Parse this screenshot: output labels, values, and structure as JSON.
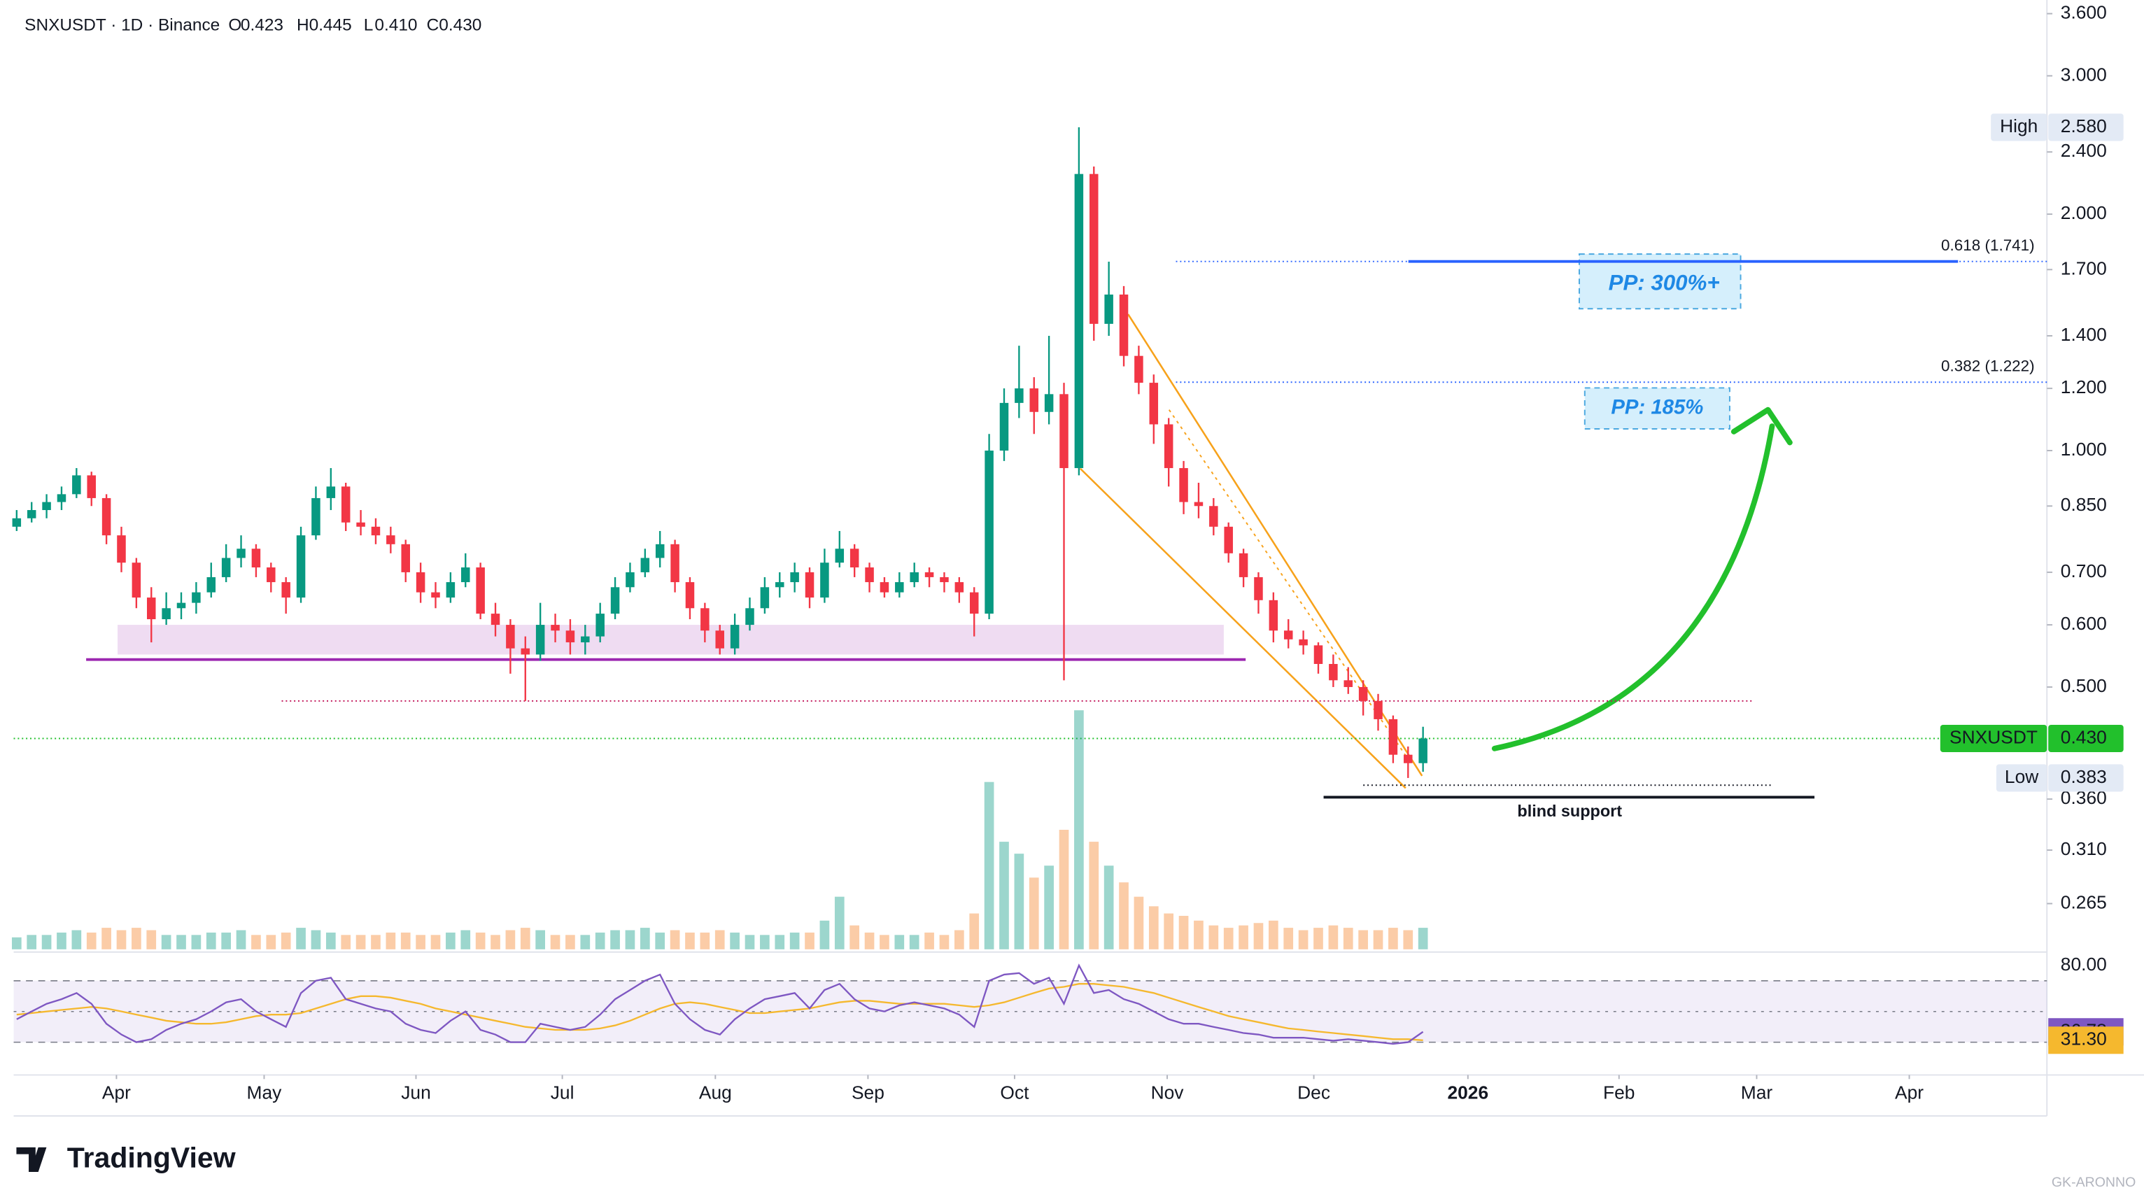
{
  "chart_data": {
    "type": "candlestick",
    "header": {
      "title": "SNXUSDT · 1D · Binance",
      "ohlc_names": [
        "O",
        "H",
        "L",
        "C"
      ],
      "values": [
        0.423,
        0.445,
        0.41,
        0.43
      ],
      "value_labels": [
        "0.423",
        "0.445",
        "0.410",
        "0.430"
      ]
    },
    "ohlc": [
      [
        0.8,
        0.84,
        0.79,
        0.82
      ],
      [
        0.82,
        0.86,
        0.81,
        0.84
      ],
      [
        0.84,
        0.88,
        0.82,
        0.86
      ],
      [
        0.86,
        0.9,
        0.84,
        0.88
      ],
      [
        0.88,
        0.95,
        0.87,
        0.93
      ],
      [
        0.93,
        0.94,
        0.85,
        0.87
      ],
      [
        0.87,
        0.88,
        0.76,
        0.78
      ],
      [
        0.78,
        0.8,
        0.7,
        0.72
      ],
      [
        0.72,
        0.73,
        0.63,
        0.65
      ],
      [
        0.65,
        0.67,
        0.57,
        0.61
      ],
      [
        0.61,
        0.66,
        0.6,
        0.63
      ],
      [
        0.63,
        0.66,
        0.61,
        0.64
      ],
      [
        0.64,
        0.68,
        0.62,
        0.66
      ],
      [
        0.66,
        0.72,
        0.65,
        0.69
      ],
      [
        0.69,
        0.76,
        0.68,
        0.73
      ],
      [
        0.73,
        0.78,
        0.71,
        0.75
      ],
      [
        0.75,
        0.76,
        0.69,
        0.71
      ],
      [
        0.71,
        0.72,
        0.66,
        0.68
      ],
      [
        0.68,
        0.69,
        0.62,
        0.65
      ],
      [
        0.65,
        0.8,
        0.64,
        0.78
      ],
      [
        0.78,
        0.9,
        0.77,
        0.87
      ],
      [
        0.87,
        0.95,
        0.84,
        0.9
      ],
      [
        0.9,
        0.91,
        0.79,
        0.81
      ],
      [
        0.81,
        0.84,
        0.78,
        0.8
      ],
      [
        0.8,
        0.82,
        0.76,
        0.78
      ],
      [
        0.78,
        0.8,
        0.74,
        0.76
      ],
      [
        0.76,
        0.77,
        0.68,
        0.7
      ],
      [
        0.7,
        0.72,
        0.64,
        0.66
      ],
      [
        0.66,
        0.68,
        0.63,
        0.65
      ],
      [
        0.65,
        0.7,
        0.64,
        0.68
      ],
      [
        0.68,
        0.74,
        0.67,
        0.71
      ],
      [
        0.71,
        0.72,
        0.61,
        0.62
      ],
      [
        0.62,
        0.64,
        0.58,
        0.6
      ],
      [
        0.6,
        0.61,
        0.52,
        0.56
      ],
      [
        0.56,
        0.58,
        0.48,
        0.55
      ],
      [
        0.55,
        0.64,
        0.54,
        0.6
      ],
      [
        0.6,
        0.62,
        0.57,
        0.59
      ],
      [
        0.59,
        0.61,
        0.55,
        0.57
      ],
      [
        0.57,
        0.6,
        0.55,
        0.58
      ],
      [
        0.58,
        0.64,
        0.57,
        0.62
      ],
      [
        0.62,
        0.69,
        0.61,
        0.67
      ],
      [
        0.67,
        0.72,
        0.66,
        0.7
      ],
      [
        0.7,
        0.75,
        0.69,
        0.73
      ],
      [
        0.73,
        0.79,
        0.71,
        0.76
      ],
      [
        0.76,
        0.77,
        0.66,
        0.68
      ],
      [
        0.68,
        0.69,
        0.61,
        0.63
      ],
      [
        0.63,
        0.64,
        0.57,
        0.59
      ],
      [
        0.59,
        0.6,
        0.55,
        0.56
      ],
      [
        0.56,
        0.62,
        0.55,
        0.6
      ],
      [
        0.6,
        0.65,
        0.59,
        0.63
      ],
      [
        0.63,
        0.69,
        0.62,
        0.67
      ],
      [
        0.67,
        0.7,
        0.65,
        0.68
      ],
      [
        0.68,
        0.72,
        0.66,
        0.7
      ],
      [
        0.7,
        0.71,
        0.63,
        0.65
      ],
      [
        0.65,
        0.75,
        0.64,
        0.72
      ],
      [
        0.72,
        0.79,
        0.71,
        0.75
      ],
      [
        0.75,
        0.76,
        0.69,
        0.71
      ],
      [
        0.71,
        0.72,
        0.66,
        0.68
      ],
      [
        0.68,
        0.69,
        0.65,
        0.66
      ],
      [
        0.66,
        0.7,
        0.65,
        0.68
      ],
      [
        0.68,
        0.72,
        0.67,
        0.7
      ],
      [
        0.7,
        0.71,
        0.67,
        0.69
      ],
      [
        0.69,
        0.7,
        0.66,
        0.68
      ],
      [
        0.68,
        0.69,
        0.64,
        0.66
      ],
      [
        0.66,
        0.67,
        0.58,
        0.62
      ],
      [
        0.62,
        1.05,
        0.61,
        1.0
      ],
      [
        1.0,
        1.2,
        0.97,
        1.15
      ],
      [
        1.15,
        1.36,
        1.1,
        1.2
      ],
      [
        1.2,
        1.24,
        1.05,
        1.12
      ],
      [
        1.12,
        1.4,
        1.08,
        1.18
      ],
      [
        1.18,
        1.22,
        0.51,
        0.95
      ],
      [
        0.95,
        2.58,
        0.93,
        2.25
      ],
      [
        2.25,
        2.3,
        1.38,
        1.45
      ],
      [
        1.45,
        1.74,
        1.4,
        1.58
      ],
      [
        1.58,
        1.62,
        1.28,
        1.32
      ],
      [
        1.32,
        1.36,
        1.18,
        1.22
      ],
      [
        1.22,
        1.25,
        1.02,
        1.08
      ],
      [
        1.08,
        1.1,
        0.9,
        0.95
      ],
      [
        0.95,
        0.97,
        0.83,
        0.86
      ],
      [
        0.86,
        0.91,
        0.82,
        0.85
      ],
      [
        0.85,
        0.87,
        0.78,
        0.8
      ],
      [
        0.8,
        0.81,
        0.72,
        0.74
      ],
      [
        0.74,
        0.75,
        0.67,
        0.69
      ],
      [
        0.69,
        0.7,
        0.62,
        0.645
      ],
      [
        0.645,
        0.66,
        0.57,
        0.59
      ],
      [
        0.59,
        0.61,
        0.56,
        0.575
      ],
      [
        0.575,
        0.59,
        0.55,
        0.565
      ],
      [
        0.565,
        0.57,
        0.52,
        0.535
      ],
      [
        0.535,
        0.55,
        0.5,
        0.51
      ],
      [
        0.51,
        0.53,
        0.49,
        0.5
      ],
      [
        0.5,
        0.51,
        0.46,
        0.48
      ],
      [
        0.48,
        0.49,
        0.44,
        0.455
      ],
      [
        0.455,
        0.46,
        0.4,
        0.41
      ],
      [
        0.41,
        0.42,
        0.383,
        0.4
      ],
      [
        0.4,
        0.445,
        0.39,
        0.43
      ]
    ],
    "volume": [
      5,
      6,
      6,
      7,
      8,
      7,
      9,
      8,
      9,
      8,
      6,
      6,
      6,
      7,
      7,
      8,
      6,
      6,
      7,
      9,
      8,
      7,
      6,
      6,
      6,
      7,
      7,
      6,
      6,
      7,
      8,
      7,
      6,
      8,
      9,
      8,
      6,
      6,
      6,
      7,
      8,
      8,
      9,
      7,
      8,
      7,
      7,
      8,
      7,
      6,
      6,
      6,
      7,
      7,
      12,
      22,
      10,
      7,
      6,
      6,
      6,
      7,
      6,
      8,
      15,
      70,
      45,
      40,
      30,
      35,
      50,
      100,
      45,
      35,
      28,
      22,
      18,
      15,
      14,
      12,
      10,
      9,
      10,
      11,
      12,
      9,
      8,
      9,
      10,
      9,
      8,
      8,
      9,
      8,
      9
    ],
    "vlim": [
      0,
      100
    ],
    "up_color": "#089981",
    "down_color": "#f23645",
    "xlim": [
      -0.2,
      135.7
    ],
    "xticks": [
      {
        "value": 6.67,
        "label": "Apr"
      },
      {
        "value": 16.54,
        "label": "May"
      },
      {
        "value": 26.69,
        "label": "Jun"
      },
      {
        "value": 36.47,
        "label": "Jul"
      },
      {
        "value": 46.7,
        "label": "Aug"
      },
      {
        "value": 56.9,
        "label": "Sep"
      },
      {
        "value": 66.7,
        "label": "Oct"
      },
      {
        "value": 76.9,
        "label": "Nov"
      },
      {
        "value": 86.7,
        "label": "Dec"
      },
      {
        "value": 97.0,
        "label": "2026"
      },
      {
        "value": 107.1,
        "label": "Feb"
      },
      {
        "value": 116.3,
        "label": "Mar"
      },
      {
        "value": 126.5,
        "label": "Apr"
      }
    ],
    "ylim": [
      0.229,
      3.747
    ],
    "log_y": true,
    "yticks": [
      {
        "value": 3.6,
        "label": "3.600"
      },
      {
        "value": 3.0,
        "label": "3.000"
      },
      {
        "value": 2.4,
        "label": "2.400"
      },
      {
        "value": 2.0,
        "label": "2.000"
      },
      {
        "value": 1.7,
        "label": "1.700"
      },
      {
        "value": 1.4,
        "label": "1.400"
      },
      {
        "value": 1.2,
        "label": "1.200"
      },
      {
        "value": 1.0,
        "label": "1.000"
      },
      {
        "value": 0.85,
        "label": "0.850"
      },
      {
        "value": 0.7,
        "label": "0.700"
      },
      {
        "value": 0.6,
        "label": "0.600"
      },
      {
        "value": 0.5,
        "label": "0.500"
      },
      {
        "value": 0.36,
        "label": "0.360"
      },
      {
        "value": 0.31,
        "label": "0.310"
      },
      {
        "value": 0.265,
        "label": "0.265"
      }
    ],
    "high": {
      "label": "High",
      "value": 2.58,
      "value_label": "2.580"
    },
    "low": {
      "label": "Low",
      "value": 0.383,
      "value_label": "0.383"
    },
    "last": {
      "label": "SNXUSDT",
      "value": 0.43,
      "value_label": "0.430",
      "color": "#22c02c"
    },
    "fib": [
      {
        "label": "0.618 (1.741)",
        "value": 1.741
      },
      {
        "label": "0.382 (1.222)",
        "value": 1.222
      }
    ],
    "targets": [
      "PP: 300%+",
      "PP: 185%"
    ],
    "support": {
      "label": "blind support",
      "value": 0.362
    },
    "zone": [
      0.55,
      0.6
    ],
    "zone_line": 0.542,
    "wick_line": 0.48,
    "low_dotted": 0.375,
    "rsi": {
      "values": [
        45,
        50,
        55,
        58,
        62,
        55,
        42,
        35,
        30,
        32,
        38,
        42,
        45,
        50,
        56,
        58,
        50,
        45,
        40,
        62,
        70,
        72,
        58,
        55,
        52,
        50,
        42,
        38,
        36,
        44,
        50,
        38,
        35,
        30,
        30,
        42,
        40,
        38,
        40,
        48,
        58,
        64,
        70,
        74,
        55,
        45,
        38,
        35,
        45,
        52,
        58,
        60,
        62,
        52,
        64,
        68,
        58,
        52,
        50,
        54,
        56,
        54,
        52,
        48,
        40,
        70,
        74,
        75,
        68,
        72,
        55,
        80,
        62,
        64,
        58,
        55,
        50,
        45,
        42,
        42,
        40,
        38,
        36,
        35,
        33,
        33,
        33,
        32,
        31,
        32,
        31,
        30,
        29,
        30,
        36.78
      ],
      "color": "#7e57c2",
      "ma": [
        48,
        49,
        50,
        51,
        52,
        53,
        52,
        50,
        48,
        46,
        44,
        43,
        42,
        42,
        43,
        45,
        47,
        48,
        48,
        49,
        52,
        55,
        58,
        60,
        60,
        59,
        57,
        55,
        52,
        50,
        48,
        46,
        44,
        42,
        40,
        39,
        38,
        38,
        38,
        39,
        41,
        44,
        48,
        52,
        55,
        56,
        55,
        53,
        51,
        49,
        49,
        50,
        51,
        52,
        54,
        56,
        57,
        57,
        56,
        55,
        55,
        55,
        55,
        54,
        53,
        54,
        56,
        59,
        62,
        65,
        66,
        68,
        68,
        67,
        66,
        64,
        62,
        59,
        56,
        53,
        50,
        47,
        45,
        43,
        41,
        39,
        38,
        37,
        36,
        35,
        34,
        33,
        32,
        32,
        31.3
      ],
      "ma_color": "#f5b82e",
      "ma_last_label": "31.30",
      "rlim": [
        8.7,
        87.8
      ],
      "ticks": [
        {
          "value": 80,
          "label": "80.00"
        }
      ],
      "levels": [
        70,
        50,
        30
      ]
    },
    "brand": "TradingView",
    "watermark": "GK-ARONNO"
  }
}
